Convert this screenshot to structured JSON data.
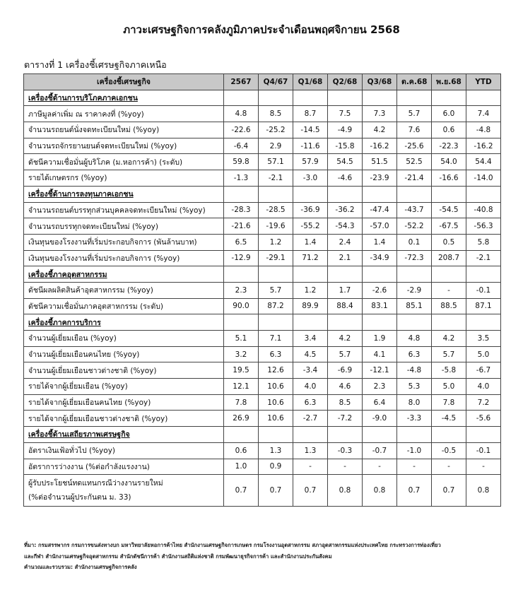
{
  "title": "ภาวะเศรษฐกิจการคลังภูมิภาคประจำเดือนพฤศจิกายน 2568",
  "caption": "ตารางที่ 1 เครื่องชี้เศรษฐกิจภาคเหนือ",
  "table": {
    "headers": [
      "เครื่องชี้เศรษฐกิจ",
      "2567",
      "Q4/67",
      "Q1/68",
      "Q2/68",
      "Q3/68",
      "ต.ค.68",
      "พ.ย.68",
      "YTD"
    ],
    "rows": [
      {
        "section": true,
        "label": "เครื่องชี้ด้านการบริโภคภาคเอกชน"
      },
      {
        "label": "ภาษีมูลค่าเพิ่ม ณ ราคาคงที่ (%yoy)",
        "values": [
          "4.8",
          "8.5",
          "8.7",
          "7.5",
          "7.3",
          "5.7",
          "6.0",
          "7.4"
        ]
      },
      {
        "label": "จำนวนรถยนต์นั่งจดทะเบียนใหม่ (%yoy)",
        "values": [
          "-22.6",
          "-25.2",
          "-14.5",
          "-4.9",
          "4.2",
          "7.6",
          "0.6",
          "-4.8"
        ]
      },
      {
        "label": "จำนวนรถจักรยานยนต์จดทะเบียนใหม่ (%yoy)",
        "values": [
          "-6.4",
          "2.9",
          "-11.6",
          "-15.8",
          "-16.2",
          "-25.6",
          "-22.3",
          "-16.2"
        ]
      },
      {
        "label": "ดัชนีความเชื่อมั่นผู้บริโภค (ม.หอการค้า) (ระดับ)",
        "values": [
          "59.8",
          "57.1",
          "57.9",
          "54.5",
          "51.5",
          "52.5",
          "54.0",
          "54.4"
        ]
      },
      {
        "label": "รายได้เกษตรกร (%yoy)",
        "values": [
          "-1.3",
          "-2.1",
          "-3.0",
          "-4.6",
          "-23.9",
          "-21.4",
          "-16.6",
          "-14.0"
        ]
      },
      {
        "section": true,
        "label": "เครื่องชี้ด้านการลงทุนภาคเอกชน"
      },
      {
        "label": "จำนวนรถยนต์บรรทุกส่วนบุคคลจดทะเบียนใหม่ (%yoy)",
        "values": [
          "-28.3",
          "-28.5",
          "-36.9",
          "-36.2",
          "-47.4",
          "-43.7",
          "-54.5",
          "-40.8"
        ]
      },
      {
        "label": "จำนวนรถบรรทุกจดทะเบียนใหม่ (%yoy)",
        "values": [
          "-21.6",
          "-19.6",
          "-55.2",
          "-54.3",
          "-57.0",
          "-52.2",
          "-67.5",
          "-56.3"
        ]
      },
      {
        "label": "เงินทุนของโรงงานที่เริ่มประกอบกิจการ (พันล้านบาท)",
        "values": [
          "6.5",
          "1.2",
          "1.4",
          "2.4",
          "1.4",
          "0.1",
          "0.5",
          "5.8"
        ]
      },
      {
        "label": "เงินทุนของโรงงานที่เริ่มประกอบกิจการ (%yoy)",
        "values": [
          "-12.9",
          "-29.1",
          "71.2",
          "2.1",
          "-34.9",
          "-72.3",
          "208.7",
          "-2.1"
        ]
      },
      {
        "section": true,
        "label": "เครื่องชี้ภาคอุตสาหกรรม"
      },
      {
        "label": "ดัชนีผลผลิตสินค้าอุตสาหกรรม (%yoy)",
        "values": [
          "2.3",
          "5.7",
          "1.2",
          "1.7",
          "-2.6",
          "-2.9",
          "-",
          "-0.1"
        ]
      },
      {
        "label": "ดัชนีความเชื่อมั่นภาคอุตสาหกรรม (ระดับ)",
        "values": [
          "90.0",
          "87.2",
          "89.9",
          "88.4",
          "83.1",
          "85.1",
          "88.5",
          "87.1"
        ]
      },
      {
        "section": true,
        "label": "เครื่องชี้ภาคการบริการ"
      },
      {
        "label": "จำนวนผู้เยี่ยมเยือน (%yoy)",
        "values": [
          "5.1",
          "7.1",
          "3.4",
          "4.2",
          "1.9",
          "4.8",
          "4.2",
          "3.5"
        ]
      },
      {
        "label": "จำนวนผู้เยี่ยมเยือนคนไทย (%yoy)",
        "values": [
          "3.2",
          "6.3",
          "4.5",
          "5.7",
          "4.1",
          "6.3",
          "5.7",
          "5.0"
        ]
      },
      {
        "label": "จำนวนผู้เยี่ยมเยือนชาวต่างชาติ (%yoy)",
        "values": [
          "19.5",
          "12.6",
          "-3.4",
          "-6.9",
          "-12.1",
          "-4.8",
          "-5.8",
          "-6.7"
        ]
      },
      {
        "label": "รายได้จากผู้เยี่ยมเยือน (%yoy)",
        "values": [
          "12.1",
          "10.6",
          "4.0",
          "4.6",
          "2.3",
          "5.3",
          "5.0",
          "4.0"
        ]
      },
      {
        "label": "รายได้จากผู้เยี่ยมเยือนคนไทย (%yoy)",
        "values": [
          "7.8",
          "10.6",
          "6.3",
          "8.5",
          "6.4",
          "8.0",
          "7.8",
          "7.2"
        ]
      },
      {
        "label": "รายได้จากผู้เยี่ยมเยือนชาวต่างชาติ (%yoy)",
        "values": [
          "26.9",
          "10.6",
          "-2.7",
          "-7.2",
          "-9.0",
          "-3.3",
          "-4.5",
          "-5.6"
        ]
      },
      {
        "section": true,
        "label": "เครื่องชี้ด้านเสถียรภาพเศรษฐกิจ"
      },
      {
        "label": "อัตราเงินเฟ้อทั่วไป (%yoy)",
        "values": [
          "0.6",
          "1.3",
          "1.3",
          "-0.3",
          "-0.7",
          "-1.0",
          "-0.5",
          "-0.1"
        ]
      },
      {
        "label": "อัตราการว่างงาน (%ต่อกำลังแรงงาน)",
        "values": [
          "1.0",
          "0.9",
          "-",
          "-",
          "-",
          "-",
          "-",
          "-"
        ]
      },
      {
        "label": "ผู้รับประโยชน์ทดแทนกรณีว่างงานรายใหม่",
        "label2": "(%ต่อจำนวนผู้ประกันตน ม. 33)",
        "values": [
          "0.7",
          "0.7",
          "0.7",
          "0.8",
          "0.8",
          "0.7",
          "0.7",
          "0.8"
        ]
      }
    ]
  },
  "footnote": {
    "source_line1": "ที่มา: กรมสรรพากร กรมการขนส่งทางบก มหาวิทยาลัยหอการค้าไทย สำนักงานเศรษฐกิจการเกษตร กรมโรงงานอุตสาหกรรม สภาอุตสาหกรรมแห่งประเทศไทย กระทรวงการท่องเที่ยว",
    "source_line2": "และกีฬา สำนักงานเศรษฐกิจอุตสาหกรรม สำนักดัชนีการค้า สำนักงานสถิติแห่งชาติ กรมพัฒนาธุรกิจการค้า และสำนักงานประกันสังคม",
    "compiled": "คำนวณและรวบรวม: สำนักงานเศรษฐกิจการคลัง"
  }
}
